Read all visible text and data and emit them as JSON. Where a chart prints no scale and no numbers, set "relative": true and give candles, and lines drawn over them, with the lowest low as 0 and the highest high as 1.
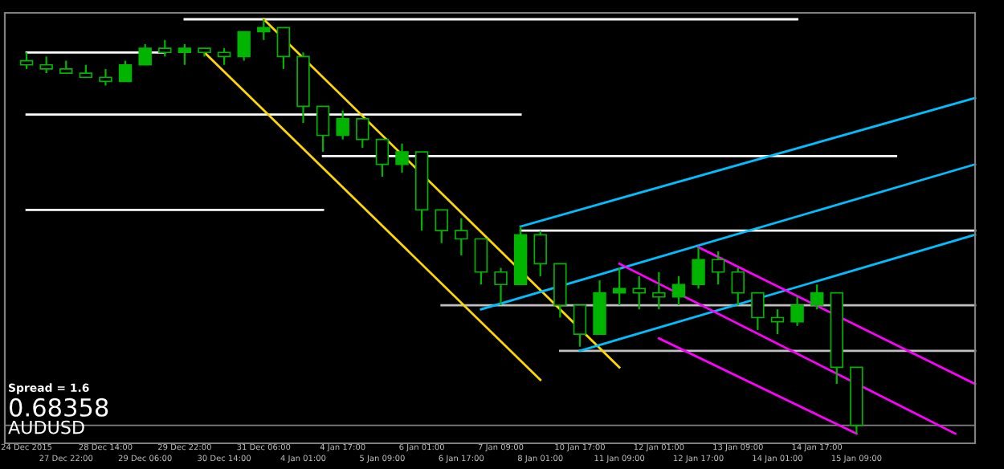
{
  "chart_data": {
    "type": "candlestick",
    "relative": true,
    "color": "#00b400",
    "categories": [
      "24 Dec 2015",
      null,
      "27 Dec 22:00",
      null,
      "28 Dec 14:00",
      null,
      "29 Dec 06:00",
      null,
      "29 Dec 22:00",
      null,
      "30 Dec 14:00",
      null,
      "31 Dec 06:00",
      null,
      "4 Jan 01:00",
      null,
      "4 Jan 17:00",
      null,
      "5 Jan 09:00",
      null,
      "6 Jan 01:00",
      null,
      "6 Jan 17:00",
      null,
      "7 Jan 09:00",
      null,
      "8 Jan 01:00",
      null,
      "10 Jan 17:00",
      null,
      "11 Jan 09:00",
      null,
      "12 Jan 01:00",
      null,
      "12 Jan 17:00",
      null,
      "13 Jan 09:00",
      null,
      "14 Jan 01:00",
      null,
      "14 Jan 17:00",
      null,
      "15 Jan 09:00",
      null,
      null,
      null,
      null,
      null,
      null
    ],
    "ohlc": [
      [
        0.9,
        0.92,
        0.88,
        0.89
      ],
      [
        0.89,
        0.91,
        0.87,
        0.88
      ],
      [
        0.88,
        0.9,
        0.87,
        0.87
      ],
      [
        0.87,
        0.89,
        0.86,
        0.86
      ],
      [
        0.86,
        0.88,
        0.84,
        0.85
      ],
      [
        0.85,
        0.9,
        0.85,
        0.89
      ],
      [
        0.89,
        0.94,
        0.89,
        0.93
      ],
      [
        0.93,
        0.95,
        0.91,
        0.92
      ],
      [
        0.92,
        0.94,
        0.89,
        0.93
      ],
      [
        0.93,
        0.93,
        0.91,
        0.92
      ],
      [
        0.92,
        0.93,
        0.89,
        0.91
      ],
      [
        0.91,
        0.97,
        0.9,
        0.97
      ],
      [
        0.97,
        1.0,
        0.95,
        0.98
      ],
      [
        0.98,
        0.98,
        0.88,
        0.91
      ],
      [
        0.91,
        0.92,
        0.75,
        0.79
      ],
      [
        0.79,
        0.79,
        0.68,
        0.72
      ],
      [
        0.72,
        0.78,
        0.71,
        0.76
      ],
      [
        0.76,
        0.76,
        0.69,
        0.71
      ],
      [
        0.71,
        0.71,
        0.62,
        0.65
      ],
      [
        0.65,
        0.7,
        0.63,
        0.68
      ],
      [
        0.68,
        0.68,
        0.49,
        0.54
      ],
      [
        0.54,
        0.54,
        0.46,
        0.49
      ],
      [
        0.49,
        0.52,
        0.43,
        0.47
      ],
      [
        0.47,
        0.47,
        0.36,
        0.39
      ],
      [
        0.39,
        0.4,
        0.31,
        0.36
      ],
      [
        0.36,
        0.5,
        0.36,
        0.48
      ],
      [
        0.48,
        0.49,
        0.38,
        0.41
      ],
      [
        0.41,
        0.41,
        0.28,
        0.31
      ],
      [
        0.31,
        0.31,
        0.21,
        0.24
      ],
      [
        0.24,
        0.37,
        0.24,
        0.34
      ],
      [
        0.34,
        0.4,
        0.31,
        0.35
      ],
      [
        0.35,
        0.38,
        0.3,
        0.34
      ],
      [
        0.34,
        0.39,
        0.3,
        0.33
      ],
      [
        0.33,
        0.38,
        0.31,
        0.36
      ],
      [
        0.36,
        0.45,
        0.35,
        0.42
      ],
      [
        0.42,
        0.44,
        0.36,
        0.39
      ],
      [
        0.39,
        0.4,
        0.31,
        0.34
      ],
      [
        0.34,
        0.34,
        0.25,
        0.28
      ],
      [
        0.28,
        0.3,
        0.24,
        0.27
      ],
      [
        0.27,
        0.33,
        0.26,
        0.31
      ],
      [
        0.31,
        0.36,
        0.3,
        0.34
      ],
      [
        0.34,
        0.34,
        0.12,
        0.16
      ],
      [
        0.16,
        0.16,
        0.0,
        0.02
      ],
      null,
      null,
      null,
      null,
      null,
      null
    ],
    "series": [
      {
        "type": "line",
        "color": "#ffffff",
        "values": [
          0.92,
          null,
          null,
          null,
          null,
          null,
          null,
          0.92,
          null,
          null,
          null,
          null,
          null,
          null,
          null,
          null,
          null,
          null,
          null,
          null,
          null,
          null,
          null,
          null,
          null,
          null,
          null,
          null,
          null,
          null,
          null,
          null,
          null,
          null,
          null,
          null,
          null,
          null,
          null,
          null,
          null,
          null,
          null,
          null,
          null,
          null,
          null,
          null,
          null
        ]
      },
      {
        "type": "line",
        "color": "#ffffff",
        "values": [
          null,
          null,
          null,
          null,
          null,
          null,
          null,
          null,
          1.0,
          null,
          null,
          null,
          null,
          null,
          null,
          null,
          null,
          null,
          null,
          null,
          null,
          null,
          null,
          null,
          null,
          null,
          null,
          null,
          null,
          null,
          null,
          null,
          null,
          null,
          null,
          null,
          null,
          null,
          null,
          1.0,
          null,
          null,
          null,
          null,
          null,
          null,
          null,
          null,
          null
        ]
      },
      {
        "type": "line",
        "color": "#ffffff",
        "values": [
          0.77,
          null,
          null,
          null,
          null,
          null,
          null,
          null,
          null,
          null,
          null,
          null,
          null,
          null,
          null,
          null,
          null,
          null,
          null,
          null,
          null,
          null,
          null,
          null,
          null,
          0.77,
          null,
          null,
          null,
          null,
          null,
          null,
          null,
          null,
          null,
          null,
          null,
          null,
          null,
          null,
          null,
          null,
          null,
          null,
          null,
          null,
          null,
          null,
          null
        ]
      },
      {
        "type": "line",
        "color": "#ffffff",
        "values": [
          0.54,
          null,
          null,
          null,
          null,
          null,
          null,
          null,
          null,
          null,
          null,
          null,
          null,
          null,
          null,
          0.54,
          null,
          null,
          null,
          null,
          null,
          null,
          null,
          null,
          null,
          null,
          null,
          null,
          null,
          null,
          null,
          null,
          null,
          null,
          null,
          null,
          null,
          null,
          null,
          null,
          null,
          null,
          null,
          null,
          null,
          null,
          null,
          null,
          null
        ]
      },
      {
        "type": "line",
        "color": "#ffffff",
        "values": [
          null,
          null,
          null,
          null,
          null,
          null,
          null,
          null,
          null,
          null,
          null,
          null,
          null,
          null,
          null,
          0.67,
          null,
          null,
          null,
          null,
          null,
          null,
          null,
          null,
          null,
          null,
          null,
          null,
          null,
          null,
          null,
          null,
          null,
          null,
          null,
          null,
          null,
          null,
          null,
          null,
          null,
          null,
          null,
          null,
          0.67,
          null,
          null,
          null,
          null
        ]
      },
      {
        "type": "line",
        "color": "#ffffff",
        "values": [
          null,
          null,
          null,
          null,
          null,
          null,
          null,
          null,
          null,
          null,
          null,
          null,
          null,
          null,
          null,
          null,
          null,
          null,
          null,
          null,
          null,
          null,
          null,
          null,
          null,
          0.49,
          null,
          null,
          null,
          null,
          null,
          null,
          null,
          null,
          null,
          null,
          null,
          null,
          null,
          null,
          null,
          null,
          null,
          null,
          null,
          null,
          null,
          null,
          0.49
        ]
      },
      {
        "type": "line",
        "color": "#c0c0c0",
        "values": [
          null,
          null,
          null,
          null,
          null,
          null,
          null,
          null,
          null,
          null,
          null,
          null,
          null,
          null,
          null,
          null,
          null,
          null,
          null,
          null,
          null,
          0.31,
          null,
          null,
          null,
          null,
          null,
          null,
          null,
          null,
          null,
          null,
          null,
          null,
          null,
          null,
          null,
          null,
          null,
          null,
          null,
          null,
          null,
          null,
          null,
          null,
          null,
          null,
          0.31
        ]
      },
      {
        "type": "line",
        "color": "#c0c0c0",
        "values": [
          null,
          null,
          null,
          null,
          null,
          null,
          null,
          null,
          null,
          null,
          null,
          null,
          null,
          null,
          null,
          null,
          null,
          null,
          null,
          null,
          null,
          null,
          null,
          null,
          null,
          null,
          null,
          0.2,
          null,
          null,
          null,
          null,
          null,
          null,
          null,
          null,
          null,
          null,
          null,
          null,
          null,
          null,
          null,
          null,
          null,
          null,
          null,
          null,
          0.2
        ]
      },
      {
        "type": "line",
        "color": "#ffd700",
        "values": [
          null,
          null,
          null,
          null,
          null,
          null,
          null,
          null,
          null,
          null,
          null,
          null,
          1.0,
          null,
          null,
          null,
          null,
          null,
          null,
          null,
          null,
          null,
          null,
          null,
          null,
          null,
          null,
          null,
          null,
          null,
          0.16,
          null,
          null,
          null,
          null,
          null,
          null,
          null,
          null,
          null,
          null,
          null,
          null,
          null,
          null,
          null,
          null,
          null,
          null
        ]
      },
      {
        "type": "line",
        "color": "#ffd700",
        "values": [
          null,
          null,
          null,
          null,
          null,
          null,
          null,
          null,
          null,
          0.92,
          null,
          null,
          null,
          null,
          null,
          null,
          null,
          null,
          null,
          null,
          null,
          null,
          null,
          null,
          null,
          null,
          0.13,
          null,
          null,
          null,
          null,
          null,
          null,
          null,
          null,
          null,
          null,
          null,
          null,
          null,
          null,
          null,
          null,
          null,
          null,
          null,
          null,
          null,
          null
        ]
      },
      {
        "type": "line",
        "color": "#00bfff",
        "values": [
          null,
          null,
          null,
          null,
          null,
          null,
          null,
          null,
          null,
          null,
          null,
          null,
          null,
          null,
          null,
          null,
          null,
          null,
          null,
          null,
          null,
          null,
          null,
          null,
          null,
          0.5,
          null,
          null,
          null,
          null,
          null,
          null,
          null,
          null,
          null,
          null,
          null,
          null,
          null,
          null,
          null,
          null,
          null,
          null,
          null,
          null,
          null,
          null,
          0.81
        ]
      },
      {
        "type": "line",
        "color": "#00bfff",
        "values": [
          null,
          null,
          null,
          null,
          null,
          null,
          null,
          null,
          null,
          null,
          null,
          null,
          null,
          null,
          null,
          null,
          null,
          null,
          null,
          null,
          null,
          null,
          null,
          0.3,
          null,
          null,
          null,
          null,
          null,
          null,
          null,
          null,
          null,
          null,
          null,
          null,
          null,
          null,
          null,
          null,
          null,
          null,
          null,
          null,
          null,
          null,
          null,
          null,
          0.65
        ]
      },
      {
        "type": "line",
        "color": "#00bfff",
        "values": [
          null,
          null,
          null,
          null,
          null,
          null,
          null,
          null,
          null,
          null,
          null,
          null,
          null,
          null,
          null,
          null,
          null,
          null,
          null,
          null,
          null,
          null,
          null,
          null,
          null,
          null,
          null,
          null,
          0.2,
          null,
          null,
          null,
          null,
          null,
          null,
          null,
          null,
          null,
          null,
          null,
          null,
          null,
          null,
          null,
          null,
          null,
          null,
          null,
          0.48
        ]
      },
      {
        "type": "line",
        "color": "#ff00ff",
        "values": [
          null,
          null,
          null,
          null,
          null,
          null,
          null,
          null,
          null,
          null,
          null,
          null,
          null,
          null,
          null,
          null,
          null,
          null,
          null,
          null,
          null,
          null,
          null,
          null,
          null,
          null,
          null,
          null,
          null,
          null,
          null,
          null,
          null,
          null,
          0.45,
          null,
          null,
          null,
          null,
          null,
          null,
          null,
          null,
          null,
          null,
          null,
          null,
          null,
          0.12
        ]
      },
      {
        "type": "line",
        "color": "#ff00ff",
        "values": [
          null,
          null,
          null,
          null,
          null,
          null,
          null,
          null,
          null,
          null,
          null,
          null,
          null,
          null,
          null,
          null,
          null,
          null,
          null,
          null,
          null,
          null,
          null,
          null,
          null,
          null,
          null,
          null,
          null,
          null,
          0.41,
          null,
          null,
          null,
          null,
          null,
          null,
          null,
          null,
          null,
          null,
          null,
          null,
          null,
          null,
          null,
          null,
          0.0,
          null
        ]
      },
      {
        "type": "line",
        "color": "#ff00ff",
        "values": [
          null,
          null,
          null,
          null,
          null,
          null,
          null,
          null,
          null,
          null,
          null,
          null,
          null,
          null,
          null,
          null,
          null,
          null,
          null,
          null,
          null,
          null,
          null,
          null,
          null,
          null,
          null,
          null,
          null,
          null,
          null,
          null,
          0.23,
          null,
          null,
          null,
          null,
          null,
          null,
          null,
          null,
          null,
          0.0,
          null,
          null,
          null,
          null,
          null,
          null
        ]
      }
    ],
    "ref_lines": [
      {
        "axis": "y",
        "value": 0.02,
        "color": "#808080"
      }
    ],
    "annotations": [
      "Spread = 1.6",
      "0.68358",
      "AUDUSD"
    ]
  }
}
